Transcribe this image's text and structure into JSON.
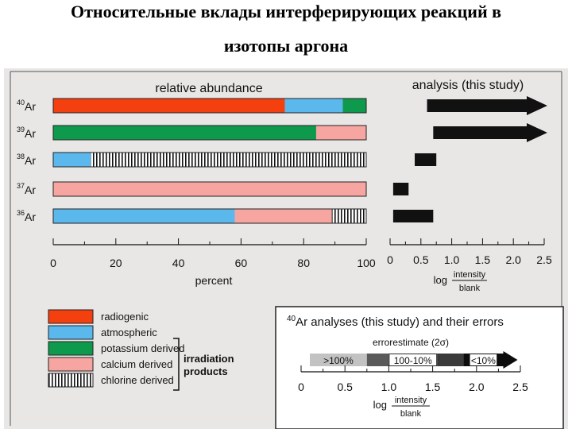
{
  "slide": {
    "title_line1": "Относительные вклады интерферирующих реакций в",
    "title_line2": "изотопы аргона"
  },
  "colors": {
    "radiogenic": "#f4400f",
    "atmospheric": "#5ab8ec",
    "potassium": "#0d9a4c",
    "calcium": "#f7a5a0",
    "chlorine": "hatched",
    "arrow": "#111111"
  },
  "chart_data": [
    {
      "type": "bar",
      "stacked": true,
      "orientation": "horizontal",
      "title": "relative abundance",
      "xlabel": "percent",
      "xlim": [
        0,
        100
      ],
      "xticks": [
        0,
        20,
        40,
        60,
        80,
        100
      ],
      "categories": [
        {
          "sup": "40",
          "base": "Ar"
        },
        {
          "sup": "39",
          "base": "Ar"
        },
        {
          "sup": "38",
          "base": "Ar"
        },
        {
          "sup": "37",
          "base": "Ar"
        },
        {
          "sup": "36",
          "base": "Ar"
        }
      ],
      "rows": [
        [
          {
            "component": "radiogenic",
            "value": 74
          },
          {
            "component": "atmospheric",
            "value": 18.5
          },
          {
            "component": "potassium",
            "value": 7.5
          }
        ],
        [
          {
            "component": "potassium",
            "value": 84
          },
          {
            "component": "calcium",
            "value": 16
          }
        ],
        [
          {
            "component": "atmospheric",
            "value": 12
          },
          {
            "component": "chlorine",
            "value": 88
          }
        ],
        [
          {
            "component": "calcium",
            "value": 100
          }
        ],
        [
          {
            "component": "atmospheric",
            "value": 58
          },
          {
            "component": "calcium",
            "value": 31
          },
          {
            "component": "chlorine",
            "value": 11
          }
        ]
      ]
    },
    {
      "type": "bar",
      "orientation": "horizontal",
      "title": "analysis (this study)",
      "xlabel_prefix": "log",
      "xlabel_num": "intensity",
      "xlabel_den": "blank",
      "xlim": [
        0,
        2.5
      ],
      "xticks": [
        "0",
        "0.5",
        "1.0",
        "1.5",
        "2.0",
        "2.5"
      ],
      "bars": [
        {
          "isotope": "40Ar",
          "from": 0.6,
          "to": 2.5,
          "arrow": true
        },
        {
          "isotope": "39Ar",
          "from": 0.7,
          "to": 2.5,
          "arrow": true
        },
        {
          "isotope": "38Ar",
          "from": 0.4,
          "to": 0.75,
          "arrow": false
        },
        {
          "isotope": "37Ar",
          "from": 0.05,
          "to": 0.3,
          "arrow": false
        },
        {
          "isotope": "36Ar",
          "from": 0.05,
          "to": 0.7,
          "arrow": false
        }
      ]
    },
    {
      "type": "bar",
      "orientation": "horizontal",
      "title_sup": "40",
      "title_rest": "Ar analyses (this study) and their errors",
      "subtitle": "errorestimate (2σ)",
      "xlabel_prefix": "log",
      "xlabel_num": "intensity",
      "xlabel_den": "blank",
      "xlim": [
        0,
        2.5
      ],
      "xticks": [
        "0",
        "0.5",
        "1.0",
        "1.5",
        "2.0",
        "2.5"
      ],
      "segments": [
        {
          "label": ">100%",
          "from": 0.1,
          "to": 0.75,
          "color": "#c2c2c2"
        },
        {
          "label": "",
          "from": 0.75,
          "to": 1.0,
          "color": "#5a5a5a"
        },
        {
          "label": "100-10%",
          "from": 1.0,
          "to": 1.55,
          "color": "#2a2a2a"
        },
        {
          "label": "",
          "from": 1.55,
          "to": 1.85,
          "color": "#3a3a3a"
        },
        {
          "label": "<10%",
          "from": 1.85,
          "to": 2.45,
          "color": "#0c0c0c",
          "arrow": true
        }
      ]
    }
  ],
  "legend": {
    "items": [
      {
        "key": "radiogenic",
        "label": "radiogenic"
      },
      {
        "key": "atmospheric",
        "label": "atmospheric"
      },
      {
        "key": "potassium",
        "label": "potassium derived"
      },
      {
        "key": "calcium",
        "label": "calcium derived"
      },
      {
        "key": "chlorine",
        "label": "chlorine derived"
      }
    ],
    "group_label_line1": "irradiation",
    "group_label_line2": "products"
  }
}
